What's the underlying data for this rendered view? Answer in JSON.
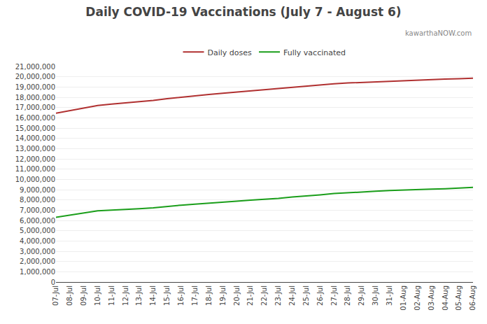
{
  "chart_data": {
    "type": "line",
    "title": "Daily COVID-19 Vaccinations (July 7 - August 6)",
    "annotations": [
      {
        "text": "kawarthaNOW.com",
        "color": "#888888"
      }
    ],
    "categories": [
      "07-Jul",
      "08-Jul",
      "09-Jul",
      "10-Jul",
      "11-Jul",
      "12-Jul",
      "13-Jul",
      "14-Jul",
      "15-Jul",
      "16-Jul",
      "17-Jul",
      "18-Jul",
      "19-Jul",
      "20-Jul",
      "21-Jul",
      "22-Jul",
      "23-Jul",
      "24-Jul",
      "25-Jul",
      "26-Jul",
      "27-Jul",
      "28-Jul",
      "29-Jul",
      "30-Jul",
      "31-Jul",
      "01-Aug",
      "02-Aug",
      "03-Aug",
      "04-Aug",
      "05-Aug",
      "06-Aug"
    ],
    "series": [
      {
        "name": "Daily doses",
        "color": "#b03030",
        "values": [
          16450000,
          16700000,
          16950000,
          17200000,
          17330000,
          17450000,
          17580000,
          17700000,
          17870000,
          18020000,
          18150000,
          18270000,
          18400000,
          18520000,
          18620000,
          18720000,
          18840000,
          18960000,
          19080000,
          19200000,
          19310000,
          19390000,
          19450000,
          19510000,
          19580000,
          19630000,
          19680000,
          19730000,
          19770000,
          19810000,
          19860000
        ]
      },
      {
        "name": "Fully vaccinated",
        "color": "#1a9e1a",
        "values": [
          6300000,
          6530000,
          6750000,
          6940000,
          7010000,
          7060000,
          7140000,
          7230000,
          7380000,
          7490000,
          7590000,
          7670000,
          7770000,
          7880000,
          7970000,
          8050000,
          8150000,
          8280000,
          8370000,
          8490000,
          8620000,
          8710000,
          8770000,
          8840000,
          8910000,
          8970000,
          9010000,
          9050000,
          9090000,
          9150000,
          9220000
        ]
      }
    ],
    "ylim": [
      0,
      21000000
    ],
    "yticks": [
      0,
      {
        "value": 1000000,
        "label": "1,000,000"
      },
      {
        "value": 2000000,
        "label": "2,000,000"
      },
      {
        "value": 3000000,
        "label": "3,000,000"
      },
      {
        "value": 4000000,
        "label": "4,000,000"
      },
      {
        "value": 5000000,
        "label": "5,000,000"
      },
      {
        "value": 6000000,
        "label": "6,000,000"
      },
      {
        "value": 7000000,
        "label": "7,000,000"
      },
      {
        "value": 8000000,
        "label": "8,000,000"
      },
      {
        "value": 9000000,
        "label": "9,000,000"
      },
      {
        "value": 10000000,
        "label": "10,000,000"
      },
      {
        "value": 11000000,
        "label": "11,000,000"
      },
      {
        "value": 12000000,
        "label": "12,000,000"
      },
      {
        "value": 13000000,
        "label": "13,000,000"
      },
      {
        "value": 14000000,
        "label": "14,000,000"
      },
      {
        "value": 15000000,
        "label": "15,000,000"
      },
      {
        "value": 16000000,
        "label": "16,000,000"
      },
      {
        "value": 17000000,
        "label": "17,000,000"
      },
      {
        "value": 18000000,
        "label": "18,000,000"
      },
      {
        "value": 19000000,
        "label": "19,000,000"
      },
      {
        "value": 20000000,
        "label": "20,000,000"
      },
      {
        "value": 21000000,
        "label": "21,000,000"
      }
    ],
    "grid": "y",
    "legend": "top"
  }
}
